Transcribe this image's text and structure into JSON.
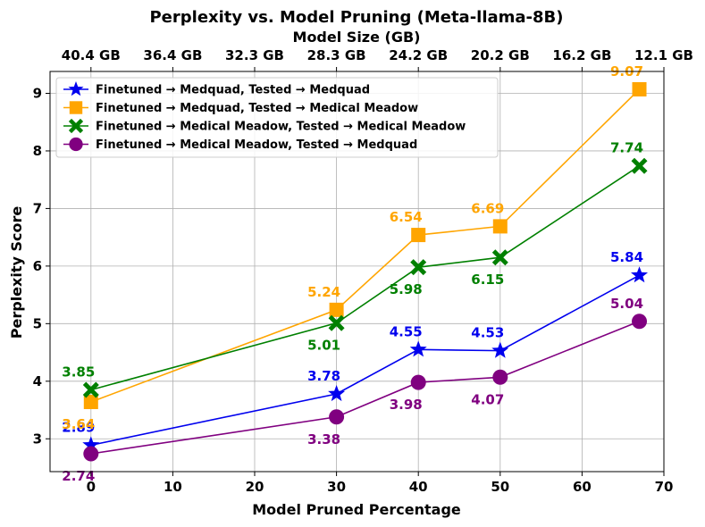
{
  "chart_data": {
    "type": "line",
    "title": "Perplexity vs. Model Pruning (Meta-llama-8B)",
    "xlabel": "Model Pruned Percentage",
    "ylabel": "Perplexity Score",
    "top_xlabel": "Model Size (GB)",
    "xlim": [
      -5,
      70
    ],
    "ylim": [
      2.43,
      9.38
    ],
    "xticks": [
      0,
      10,
      20,
      30,
      40,
      50,
      60,
      70
    ],
    "yticks": [
      3,
      4,
      5,
      6,
      7,
      8,
      9
    ],
    "top_ticks": [
      {
        "x": 0,
        "label": "40.4 GB"
      },
      {
        "x": 10,
        "label": "36.4 GB"
      },
      {
        "x": 20,
        "label": "32.3 GB"
      },
      {
        "x": 30,
        "label": "28.3 GB"
      },
      {
        "x": 40,
        "label": "24.2 GB"
      },
      {
        "x": 50,
        "label": "20.2 GB"
      },
      {
        "x": 60,
        "label": "16.2 GB"
      },
      {
        "x": 70,
        "label": "12.1 GB"
      }
    ],
    "grid": true,
    "legend_position": "top-left",
    "x": [
      0,
      30,
      40,
      50,
      67
    ],
    "series": [
      {
        "name": "Finetuned → Medquad, Tested → Medquad",
        "color": "#0000ee",
        "marker": "star",
        "values": [
          2.89,
          3.78,
          4.55,
          4.53,
          5.84
        ],
        "labels": [
          "2.89",
          "3.78",
          "4.55",
          "4.53",
          "5.84"
        ],
        "label_pos": [
          "above",
          "above",
          "above",
          "above",
          "above"
        ]
      },
      {
        "name": "Finetuned → Medquad, Tested → Medical Meadow",
        "color": "#ffa500",
        "marker": "square",
        "values": [
          3.64,
          5.24,
          6.54,
          6.69,
          9.07
        ],
        "labels": [
          "3.64",
          "5.24",
          "6.54",
          "6.69",
          "9.07"
        ],
        "label_pos": [
          "below",
          "above",
          "above",
          "above",
          "above"
        ]
      },
      {
        "name": "Finetuned → Medical Meadow, Tested → Medical Meadow",
        "color": "#008000",
        "marker": "x",
        "values": [
          3.85,
          5.01,
          5.98,
          6.15,
          7.74
        ],
        "labels": [
          "3.85",
          "5.01",
          "5.98",
          "6.15",
          "7.74"
        ],
        "label_pos": [
          "above",
          "below",
          "below",
          "below",
          "above"
        ]
      },
      {
        "name": "Finetuned → Medical Meadow, Tested → Medquad",
        "color": "#800080",
        "marker": "circle",
        "values": [
          2.74,
          3.38,
          3.98,
          4.07,
          5.04
        ],
        "labels": [
          "2.74",
          "3.38",
          "3.98",
          "4.07",
          "5.04"
        ],
        "label_pos": [
          "below",
          "below",
          "below",
          "below",
          "above"
        ]
      }
    ]
  }
}
